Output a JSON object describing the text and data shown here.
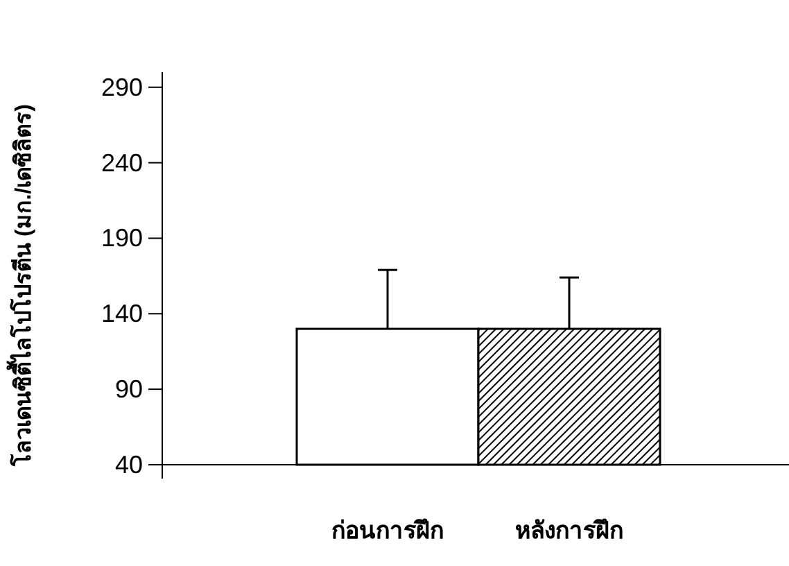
{
  "chart_data": {
    "type": "bar",
    "ylabel": "โลวเดนซิตี้ไลโปโปรตีน (มก./เดซิลิตร)",
    "categories": [
      "ก่อนการฝึก",
      "หลังการฝึก"
    ],
    "values": [
      130,
      130
    ],
    "errors": [
      [
        130,
        169
      ],
      [
        130,
        164
      ]
    ],
    "colors": [
      "#ffffff",
      "#000000"
    ],
    "ylim": [
      40,
      300
    ],
    "yticks": [
      40,
      90,
      140,
      190,
      240,
      290
    ],
    "grid": false
  }
}
